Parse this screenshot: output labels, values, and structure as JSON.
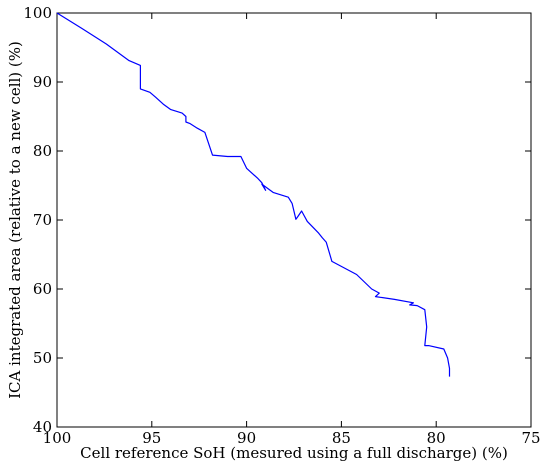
{
  "chart_data": {
    "type": "line",
    "title": "",
    "xlabel": "Cell reference SoH (mesured using a full discharge) (%)",
    "ylabel": "ICA integrated area (relative to a new cell) (%)",
    "xlim": [
      100,
      75
    ],
    "ylim": [
      40,
      100
    ],
    "x_reversed": true,
    "grid": false,
    "xticks": [
      100,
      95,
      90,
      85,
      80,
      75
    ],
    "yticks": [
      40,
      50,
      60,
      70,
      80,
      90,
      100
    ],
    "line_color": "#0000ff",
    "series": [
      {
        "x": [
          100,
          98.7,
          97.4,
          96.2,
          95.6,
          95.6,
          95.1,
          94.8,
          94.4,
          94.0,
          93.4,
          93.2,
          93.2,
          93.0,
          92.6,
          92.2,
          91.8,
          91.0,
          90.4,
          90.3,
          90.0,
          89.4,
          89.2,
          89.0,
          89.2,
          88.6,
          87.8,
          87.6,
          87.4,
          87.3,
          87.1,
          86.8,
          86.2,
          86.0,
          85.8,
          85.5,
          84.2,
          83.4,
          83.0,
          83.2,
          82.2,
          81.2,
          81.4,
          81.0,
          80.6,
          80.5,
          80.6,
          80.4,
          79.6,
          79.4,
          79.3,
          79.3
        ],
        "y": [
          100,
          97.8,
          95.5,
          93.1,
          92.4,
          89.0,
          88.5,
          87.8,
          86.8,
          86.0,
          85.5,
          85.0,
          84.2,
          84.0,
          83.3,
          82.7,
          79.4,
          79.2,
          79.2,
          79.2,
          77.5,
          76.0,
          75.4,
          74.3,
          75.2,
          74.0,
          73.3,
          72.4,
          70.1,
          70.5,
          71.3,
          69.8,
          68.1,
          67.4,
          66.8,
          64.0,
          62.1,
          60.0,
          59.4,
          58.9,
          58.5,
          58.0,
          57.7,
          57.6,
          57.0,
          54.5,
          51.8,
          51.8,
          51.3,
          50.0,
          48.5,
          47.3
        ]
      }
    ]
  }
}
